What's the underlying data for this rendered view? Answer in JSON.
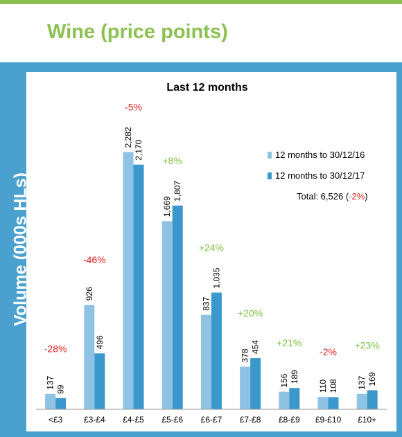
{
  "slide_title": "Wine (price points)",
  "colors": {
    "accent_green": "#8cc152",
    "panel_blue": "#4aa0cf",
    "series_2016": "#8fc3e3",
    "series_2017": "#3a98cd",
    "pct_negative": "#e02020",
    "pct_positive": "#7cc142"
  },
  "total_note": {
    "prefix": "Total: 6,526 (",
    "value": "-2%",
    "suffix": ")"
  },
  "chart_data": {
    "type": "bar",
    "title": "Last 12 months",
    "ylabel": "Volume (000s HLs)",
    "xlabel": "",
    "ylim": [
      0,
      2500
    ],
    "grid": false,
    "legend_position": "right",
    "categories": [
      "<£3",
      "£3-£4",
      "£4-£5",
      "£5-£6",
      "£6-£7",
      "£7-£8",
      "£8-£9",
      "£9-£10",
      "£10+"
    ],
    "series": [
      {
        "name": "12 months to 30/12/16",
        "values": [
          137,
          926,
          2282,
          1669,
          837,
          378,
          156,
          110,
          137
        ],
        "labels": [
          "137",
          "926",
          "2,282",
          "1,669",
          "837",
          "378",
          "156",
          "110",
          "137"
        ]
      },
      {
        "name": "12 months to 30/12/17",
        "values": [
          99,
          496,
          2170,
          1807,
          1035,
          454,
          189,
          108,
          169
        ],
        "labels": [
          "99",
          "496",
          "2,170",
          "1,807",
          "1,035",
          "454",
          "189",
          "108",
          "169"
        ]
      }
    ],
    "changes": [
      "-28%",
      "-46%",
      "-5%",
      "+8%",
      "+24%",
      "+20%",
      "+21%",
      "-2%",
      "+23%"
    ]
  }
}
